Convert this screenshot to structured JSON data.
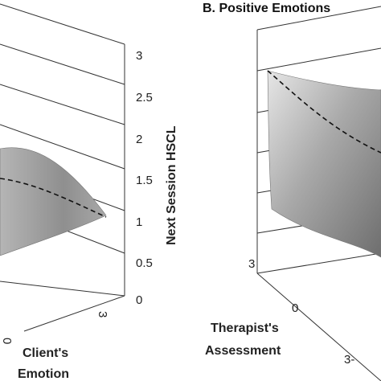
{
  "chart_data": [
    {
      "type": "surface",
      "panel": "A",
      "title": "",
      "zlabel": "Next Session HSCL",
      "xlabel": "Client's Emotion",
      "zlim": [
        0,
        3
      ],
      "z_ticks": [
        "3",
        "2.5",
        "2",
        "1.5",
        "1",
        "0.5",
        "0"
      ],
      "x_ticks": [
        "3"
      ],
      "dashed_line_z": [
        1.55,
        1.45,
        1.35,
        1.22,
        1.1,
        0.98
      ]
    },
    {
      "type": "surface",
      "panel": "B",
      "title": "B. Positive Emotions",
      "ylabel": "Therapist's Assessment",
      "y_ticks": [
        "3",
        "0",
        "3-"
      ],
      "dashed_line_z": [
        2.75,
        2.45,
        2.15,
        1.9,
        1.7
      ]
    }
  ],
  "colors": {
    "surface_light": "#c9c9c9",
    "surface_dark": "#7a7a7a",
    "grid": "#333333"
  }
}
